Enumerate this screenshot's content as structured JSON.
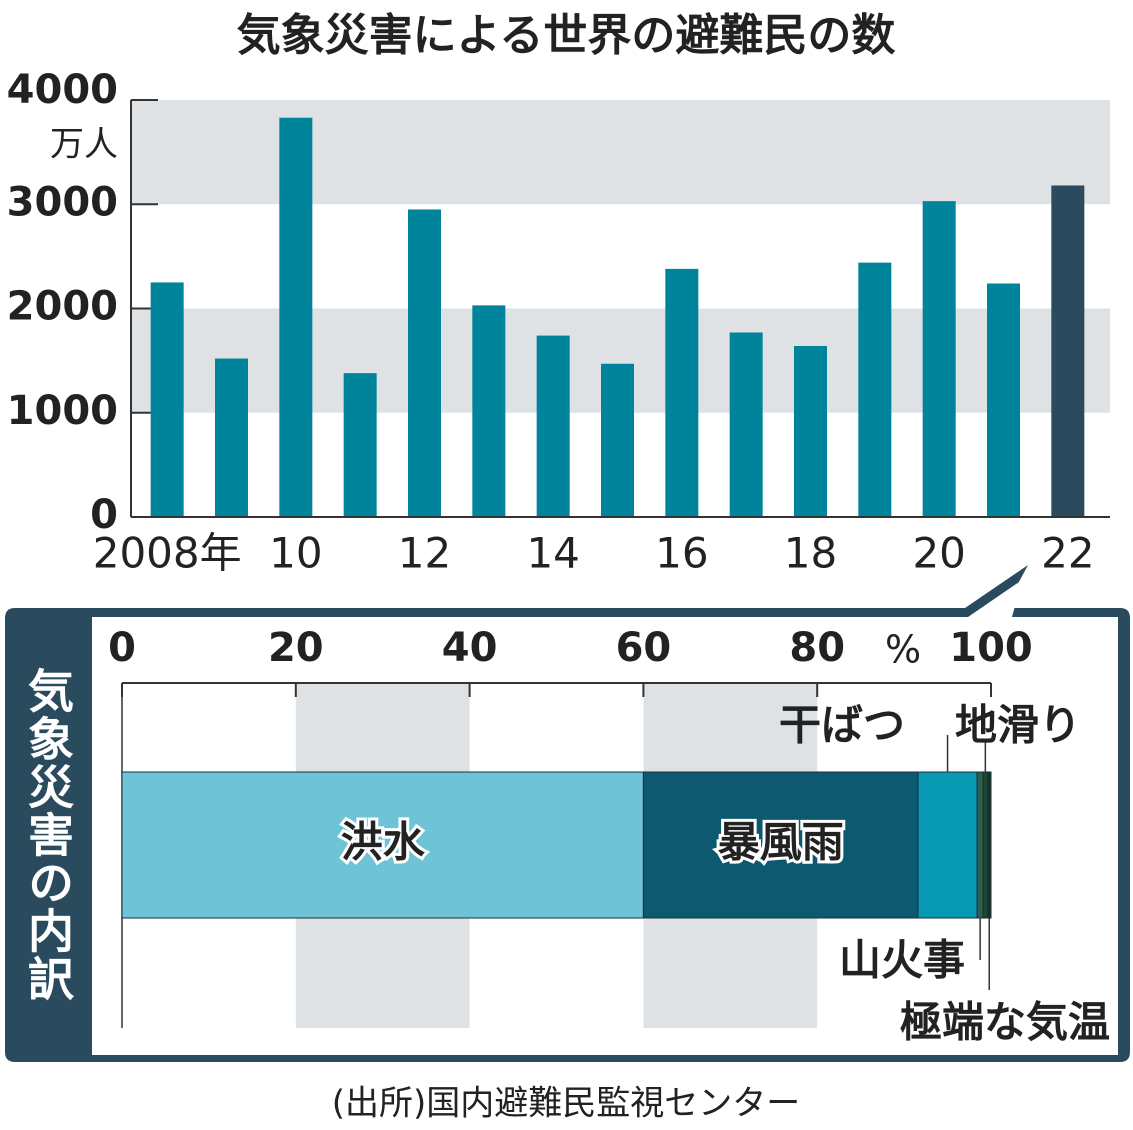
{
  "chart_data": [
    {
      "type": "bar",
      "title": "気象災害による世界の避難民の数",
      "y_unit": "万人",
      "categories": [
        "2008年",
        null,
        "10",
        null,
        "12",
        null,
        "14",
        null,
        "16",
        null,
        "18",
        null,
        "20",
        null,
        "22"
      ],
      "values": [
        2250,
        1520,
        3830,
        1380,
        2950,
        2030,
        1740,
        1470,
        2380,
        1770,
        1640,
        2440,
        3030,
        2240,
        3180
      ],
      "colors": [
        "#00849b",
        "#00849b",
        "#00849b",
        "#00849b",
        "#00849b",
        "#00849b",
        "#00849b",
        "#00849b",
        "#00849b",
        "#00849b",
        "#00849b",
        "#00849b",
        "#00849b",
        "#00849b",
        "#2a4a5e"
      ],
      "ylim": [
        0,
        4000
      ],
      "yticks": [
        0,
        1000,
        2000,
        3000,
        4000
      ],
      "grid": "bands"
    },
    {
      "type": "stacked_bar",
      "title": "気象災害の内訳",
      "x_unit": "%",
      "series": [
        {
          "name": "洪水",
          "color": "#6fc3d6",
          "values": [
            60
          ]
        },
        {
          "name": "暴風雨",
          "color": "#0d5a70",
          "values": [
            31.6
          ]
        },
        {
          "name": "干ばつ",
          "color": "#0899b5",
          "values": [
            6.8
          ]
        },
        {
          "name": "山火事",
          "color": "#2e5f4a",
          "values": [
            0.7
          ]
        },
        {
          "name": "地滑り",
          "color": "#1f4636",
          "values": [
            0.5
          ]
        },
        {
          "name": "極端な気温",
          "color": "#173326",
          "values": [
            0.4
          ]
        }
      ],
      "xlim": [
        0,
        100
      ],
      "xticks": [
        0,
        20,
        40,
        60,
        80,
        100
      ],
      "grid": "bands"
    }
  ],
  "source": "(出所)国内避難民監視センター"
}
